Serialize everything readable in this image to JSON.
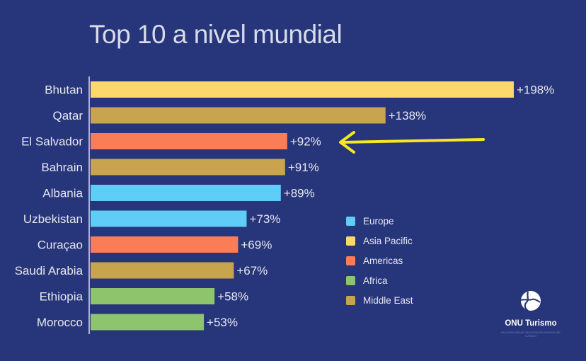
{
  "chart_data": {
    "type": "bar",
    "orientation": "horizontal",
    "title": "Top 10 a nivel mundial",
    "xlabel": "",
    "ylabel": "",
    "xlim": [
      0,
      200
    ],
    "grid": false,
    "categories": [
      "Bhutan",
      "Qatar",
      "El Salvador",
      "Bahrain",
      "Albania",
      "Uzbekistan",
      "Curaçao",
      "Saudi Arabia",
      "Ethiopia",
      "Morocco"
    ],
    "values": [
      198,
      138,
      92,
      91,
      89,
      73,
      69,
      67,
      58,
      53
    ],
    "value_labels": [
      "+198%",
      "+138%",
      "+92%",
      "+91%",
      "+89%",
      "+73%",
      "+69%",
      "+67%",
      "+58%",
      "+53%"
    ],
    "regions": [
      "Asia Pacific",
      "Middle East",
      "Americas",
      "Middle East",
      "Europe",
      "Europe",
      "Americas",
      "Middle East",
      "Africa",
      "Africa"
    ],
    "legend": {
      "placement": "bottom-right",
      "entries": [
        {
          "label": "Europe",
          "color": "#5fcdf7"
        },
        {
          "label": "Asia Pacific",
          "color": "#fdd86c"
        },
        {
          "label": "Americas",
          "color": "#fa7d58"
        },
        {
          "label": "Africa",
          "color": "#8dc46c"
        },
        {
          "label": "Middle East",
          "color": "#c8a44f"
        }
      ]
    },
    "annotation": {
      "type": "arrow",
      "target": "El Salvador",
      "color": "#f7e722"
    }
  },
  "logo": {
    "name": "ONU Turismo",
    "subtitle": "NACIONES UNIDAS ORGANIZACIÓN MUNDIAL DEL TURISMO"
  },
  "colors": {
    "background": "#27357a",
    "axis": "#d8dbe8"
  }
}
